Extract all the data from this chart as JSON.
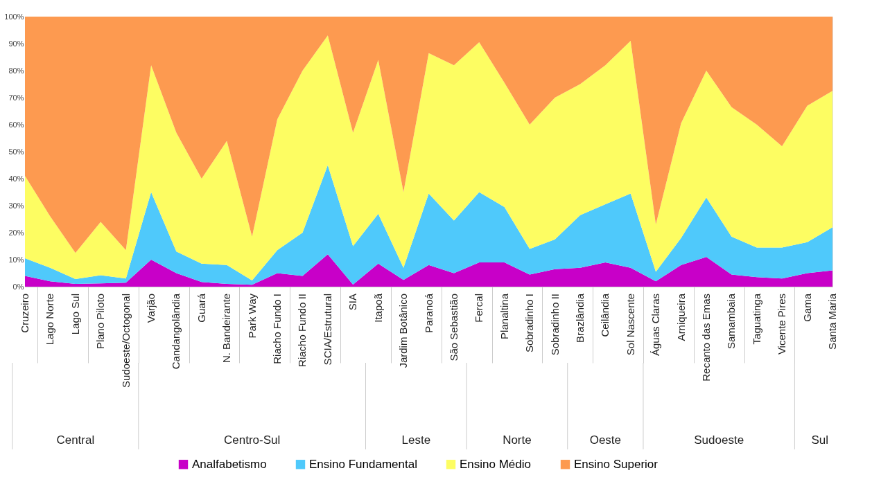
{
  "chart_data": {
    "type": "area",
    "stacked": true,
    "legend": "bottom",
    "grid": false,
    "categories": [
      "Cruzeiro",
      "Lago Norte",
      "Lago Sul",
      "Plano Piloto",
      "Sudoeste/Octogonal",
      "Varjão",
      "Candangolândia",
      "Guará",
      "N. Bandeirante",
      "Park Way",
      "Riacho Fundo I",
      "Riacho Fundo II",
      "SCIA/Estrutural",
      "SIA",
      "Itapoã",
      "Jardim Botânico",
      "Paranoá",
      "São Sebastião",
      "Fercal",
      "Planaltina",
      "Sobradinho I",
      "Sobradinho II",
      "Brazlândia",
      "Ceilândia",
      "Sol Nascente",
      "Águas Claras",
      "Arniqueira",
      "Recanto das Emas",
      "Samambaia",
      "Taguatinga",
      "Vicente Pires",
      "Gama",
      "Santa Maria"
    ],
    "series": [
      {
        "name": "Analfabetismo",
        "color": "#c800c8",
        "values": [
          4,
          2,
          1,
          1.2,
          1.5,
          10,
          5,
          1.7,
          1,
          0.7,
          5,
          4,
          12,
          0.8,
          8.5,
          2.5,
          8,
          5,
          9,
          9,
          4.5,
          6.5,
          7,
          9,
          7,
          2,
          8,
          11,
          4.5,
          3.5,
          3,
          5,
          6
        ]
      },
      {
        "name": "Ensino Fundamental",
        "color": "#4fc9fb",
        "values": [
          6.5,
          5,
          1.8,
          3,
          1.5,
          25,
          8,
          6.8,
          7,
          1.6,
          8.5,
          16,
          33,
          14.2,
          18.5,
          4.5,
          26.5,
          19.5,
          26,
          20.5,
          9.5,
          11,
          19.5,
          21.5,
          27.5,
          3.5,
          10,
          22,
          14,
          11,
          11.5,
          11.5,
          16
        ]
      },
      {
        "name": "Ensino Médio",
        "color": "#fdfd62",
        "values": [
          30.5,
          19,
          9.7,
          19.8,
          10.5,
          47,
          44,
          31.5,
          46,
          16.2,
          48.5,
          60,
          48,
          42,
          57,
          28,
          52,
          57.5,
          55.5,
          46,
          46,
          52.5,
          48.5,
          51.5,
          56.5,
          17.5,
          42.5,
          47,
          48,
          45.5,
          37.5,
          50.5,
          50.5
        ]
      },
      {
        "name": "Ensino Superior",
        "color": "#fd9a50",
        "values": [
          59,
          74,
          87.5,
          76,
          86.5,
          18,
          43,
          60,
          46,
          81.5,
          38,
          20,
          7,
          43,
          16,
          65,
          13.5,
          18,
          9.5,
          24.5,
          40,
          30,
          25,
          18,
          9,
          77,
          39.5,
          20,
          33.5,
          40,
          48,
          33,
          27.5
        ]
      }
    ],
    "ylim": [
      0,
      100
    ],
    "yticks": [
      {
        "value": 0,
        "label": "0%"
      },
      {
        "value": 10,
        "label": "10%"
      },
      {
        "value": 20,
        "label": "20%"
      },
      {
        "value": 30,
        "label": "30%"
      },
      {
        "value": 40,
        "label": "40%"
      },
      {
        "value": 50,
        "label": "50%"
      },
      {
        "value": 60,
        "label": "60%"
      },
      {
        "value": 70,
        "label": "70%"
      },
      {
        "value": 80,
        "label": "80%"
      },
      {
        "value": 90,
        "label": "90%"
      },
      {
        "value": 100,
        "label": "100%"
      }
    ],
    "annotations": [
      "Central",
      "Centro-Sul",
      "Leste",
      "Norte",
      "Oeste",
      "Sudoeste",
      "Sul"
    ]
  }
}
